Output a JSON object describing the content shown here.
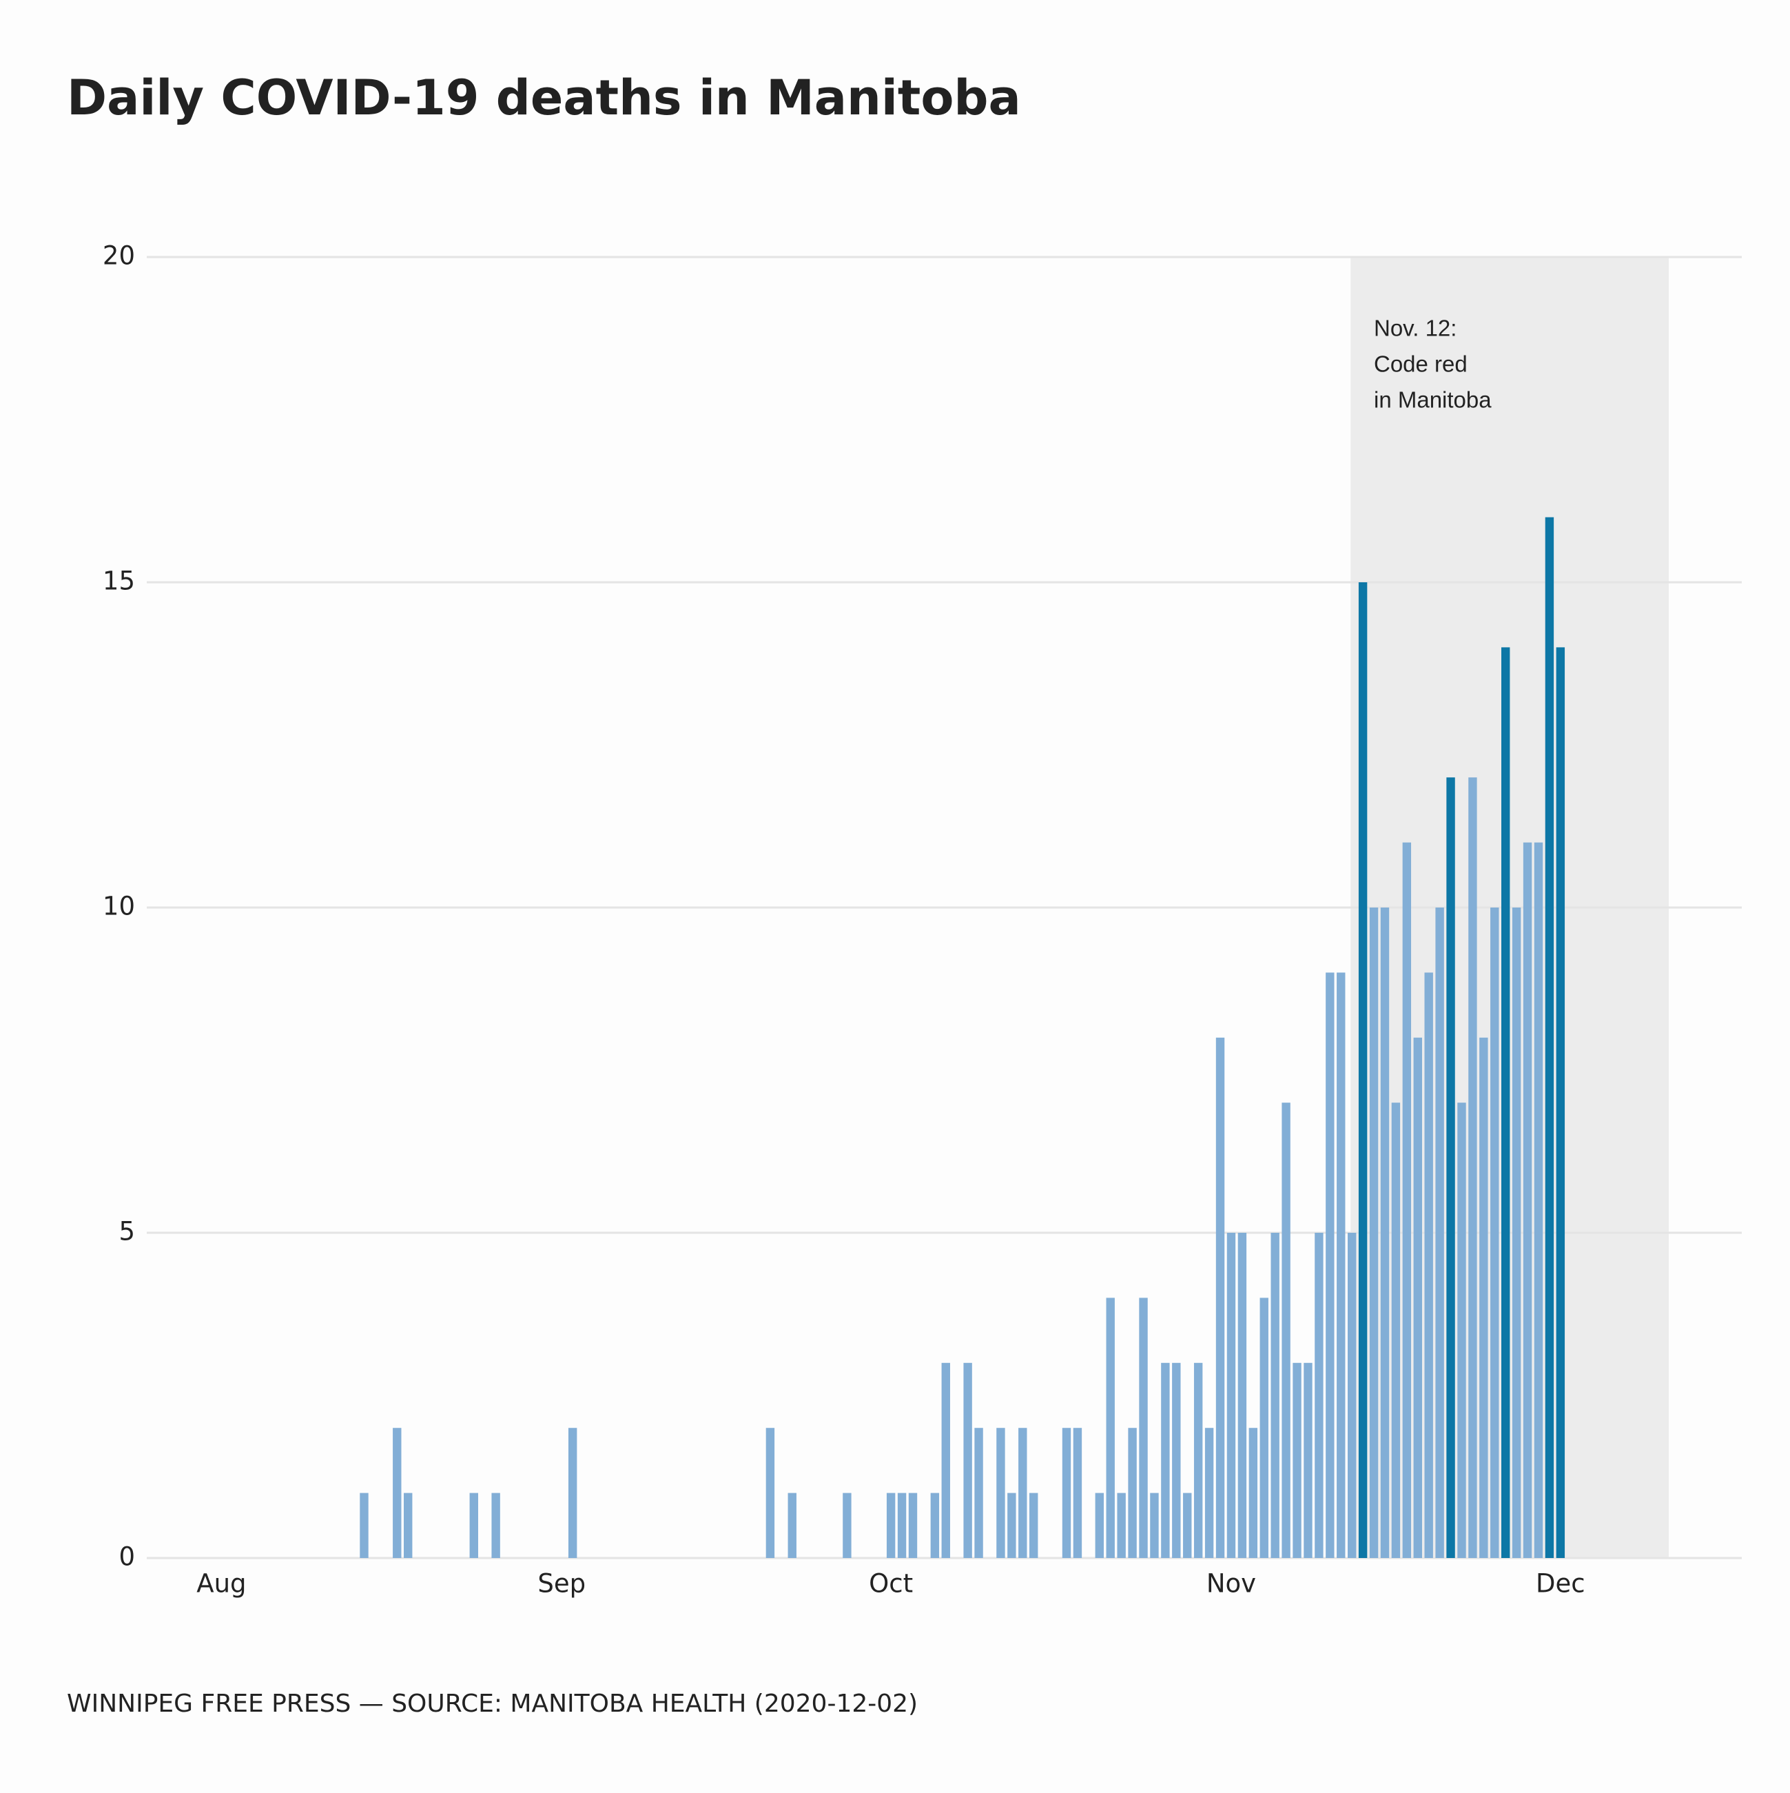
{
  "chart_data": {
    "type": "bar",
    "title": "Daily COVID-19 deaths in Manitoba",
    "source": "WINNIPEG FREE PRESS — SOURCE: MANITOBA HEALTH (2020-12-02)",
    "annotation": [
      "Nov. 12:",
      "Code red",
      "in Manitoba"
    ],
    "categories": [
      "Aug",
      null,
      null,
      null,
      null,
      null,
      null,
      null,
      null,
      null,
      null,
      null,
      null,
      null,
      null,
      null,
      null,
      null,
      null,
      null,
      null,
      null,
      null,
      null,
      null,
      null,
      null,
      null,
      null,
      null,
      null,
      "Sep",
      null,
      null,
      null,
      null,
      null,
      null,
      null,
      null,
      null,
      null,
      null,
      null,
      null,
      null,
      null,
      null,
      null,
      null,
      null,
      null,
      null,
      null,
      null,
      null,
      null,
      null,
      null,
      null,
      null,
      "Oct",
      null,
      null,
      null,
      null,
      null,
      null,
      null,
      null,
      null,
      null,
      null,
      null,
      null,
      null,
      null,
      null,
      null,
      null,
      null,
      null,
      null,
      null,
      null,
      null,
      null,
      null,
      null,
      null,
      null,
      null,
      "Nov",
      null,
      null,
      null,
      null,
      null,
      null,
      null,
      null,
      null,
      null,
      null,
      null,
      null,
      null,
      null,
      null,
      null,
      null,
      null,
      null,
      null,
      null,
      null,
      null,
      null,
      null,
      null,
      null,
      null,
      "Dec"
    ],
    "values": [
      0,
      0,
      0,
      0,
      0,
      0,
      0,
      0,
      0,
      0,
      0,
      0,
      0,
      1,
      0,
      0,
      2,
      1,
      0,
      0,
      0,
      0,
      0,
      1,
      0,
      1,
      0,
      0,
      0,
      0,
      0,
      0,
      2,
      0,
      0,
      0,
      0,
      0,
      0,
      0,
      0,
      0,
      0,
      0,
      0,
      0,
      0,
      0,
      0,
      0,
      2,
      0,
      1,
      0,
      0,
      0,
      0,
      1,
      0,
      0,
      0,
      1,
      1,
      1,
      0,
      1,
      3,
      0,
      3,
      2,
      0,
      2,
      1,
      2,
      1,
      0,
      0,
      2,
      2,
      0,
      1,
      4,
      1,
      2,
      4,
      1,
      3,
      3,
      1,
      3,
      2,
      8,
      5,
      5,
      2,
      4,
      5,
      7,
      3,
      3,
      5,
      9,
      9,
      5,
      15,
      10,
      10,
      7,
      11,
      8,
      9,
      10,
      12,
      7,
      12,
      8,
      10,
      14,
      10,
      11,
      11,
      16,
      14
    ],
    "colors": [
      "#82aed6",
      "#82aed6",
      "#82aed6",
      "#82aed6",
      "#82aed6",
      "#82aed6",
      "#82aed6",
      "#82aed6",
      "#82aed6",
      "#82aed6",
      "#82aed6",
      "#82aed6",
      "#82aed6",
      "#82aed6",
      "#82aed6",
      "#82aed6",
      "#82aed6",
      "#82aed6",
      "#82aed6",
      "#82aed6",
      "#82aed6",
      "#82aed6",
      "#82aed6",
      "#82aed6",
      "#82aed6",
      "#82aed6",
      "#82aed6",
      "#82aed6",
      "#82aed6",
      "#82aed6",
      "#82aed6",
      "#82aed6",
      "#82aed6",
      "#82aed6",
      "#82aed6",
      "#82aed6",
      "#82aed6",
      "#82aed6",
      "#82aed6",
      "#82aed6",
      "#82aed6",
      "#82aed6",
      "#82aed6",
      "#82aed6",
      "#82aed6",
      "#82aed6",
      "#82aed6",
      "#82aed6",
      "#82aed6",
      "#82aed6",
      "#82aed6",
      "#82aed6",
      "#82aed6",
      "#82aed6",
      "#82aed6",
      "#82aed6",
      "#82aed6",
      "#82aed6",
      "#82aed6",
      "#82aed6",
      "#82aed6",
      "#82aed6",
      "#82aed6",
      "#82aed6",
      "#82aed6",
      "#82aed6",
      "#82aed6",
      "#82aed6",
      "#82aed6",
      "#82aed6",
      "#82aed6",
      "#82aed6",
      "#82aed6",
      "#82aed6",
      "#82aed6",
      "#82aed6",
      "#82aed6",
      "#82aed6",
      "#82aed6",
      "#82aed6",
      "#82aed6",
      "#82aed6",
      "#82aed6",
      "#82aed6",
      "#82aed6",
      "#82aed6",
      "#82aed6",
      "#82aed6",
      "#82aed6",
      "#82aed6",
      "#82aed6",
      "#82aed6",
      "#82aed6",
      "#82aed6",
      "#82aed6",
      "#82aed6",
      "#82aed6",
      "#82aed6",
      "#82aed6",
      "#82aed6",
      "#82aed6",
      "#82aed6",
      "#82aed6",
      "#82aed6",
      "#0d77a6",
      "#82aed6",
      "#82aed6",
      "#82aed6",
      "#82aed6",
      "#82aed6",
      "#82aed6",
      "#82aed6",
      "#0d77a6",
      "#82aed6",
      "#82aed6",
      "#82aed6",
      "#82aed6",
      "#0d77a6",
      "#82aed6",
      "#82aed6",
      "#82aed6",
      "#0d77a6",
      "#0d77a6"
    ],
    "ylim": [
      0,
      20
    ],
    "yticks": [
      0,
      5,
      10,
      15,
      20
    ],
    "grid": true
  }
}
